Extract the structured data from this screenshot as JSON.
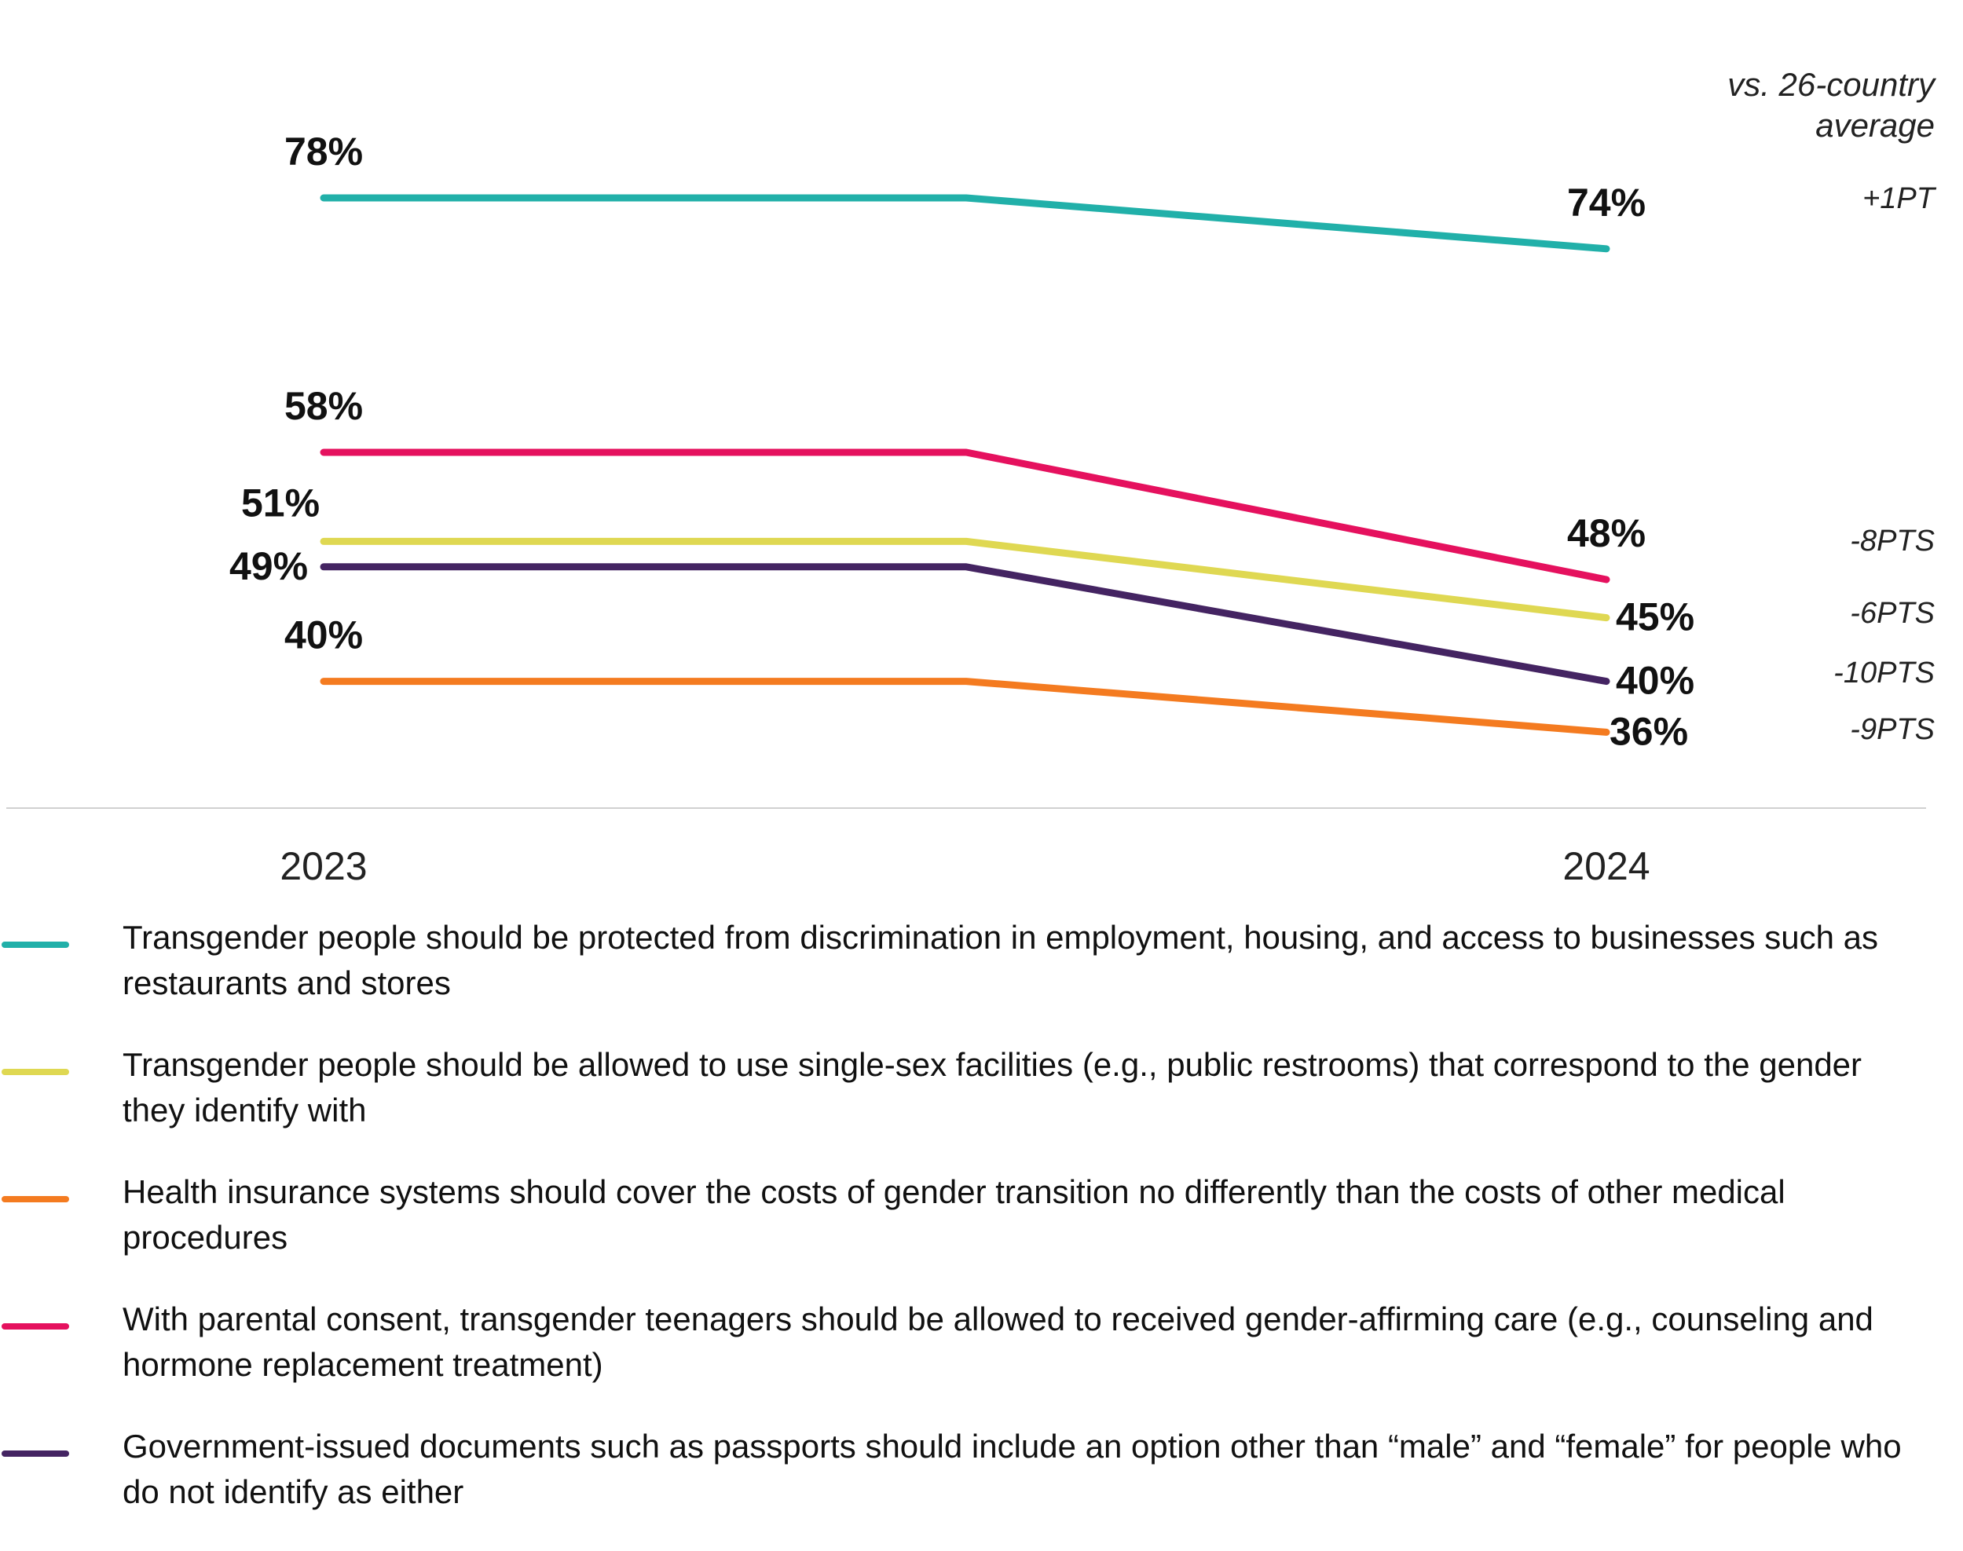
{
  "chart_data": {
    "type": "line",
    "x": [
      "2023",
      "2024"
    ],
    "ylim": [
      30,
      80
    ],
    "grid": false,
    "legend_position": "bottom",
    "comparison_header": [
      "vs. 26-country",
      "average"
    ],
    "series": [
      {
        "name": "Transgender people should be protected from discrimination in employment, housing, and access to businesses such as restaurants and stores",
        "values": [
          78,
          74
        ],
        "labels": [
          "78%",
          "74%"
        ],
        "delta": "+1PT",
        "color": "#21b0a9"
      },
      {
        "name": "Transgender people should be allowed to use single-sex facilities (e.g., public restrooms) that correspond to the gender they identify with",
        "values": [
          51,
          45
        ],
        "labels": [
          "51%",
          "45%"
        ],
        "delta": "-6PTS",
        "color": "#dfd852"
      },
      {
        "name": "Health insurance systems should cover the costs of gender transition no differently than the costs of other medical procedures",
        "values": [
          40,
          36
        ],
        "labels": [
          "40%",
          "36%"
        ],
        "delta": "-9PTS",
        "color": "#f47b20"
      },
      {
        "name": "With parental consent, transgender teenagers should be allowed to received gender-affirming care (e.g., counseling and hormone replacement treatment)",
        "values": [
          58,
          48
        ],
        "labels": [
          "58%",
          "48%"
        ],
        "delta": "-8PTS",
        "color": "#e5115e"
      },
      {
        "name": "Government-issued documents such as passports should include an option other than “male” and “female” for people who do not identify as either",
        "values": [
          49,
          40
        ],
        "labels": [
          "49%",
          "40%"
        ],
        "delta": "-10PTS",
        "color": "#442462"
      }
    ]
  }
}
